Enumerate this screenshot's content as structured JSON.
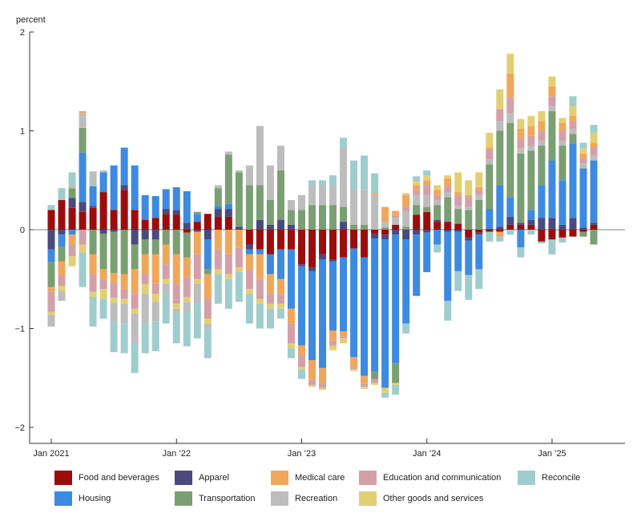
{
  "chart_data": {
    "type": "bar",
    "stacked": true,
    "ylabel": "percent",
    "ylim": [
      -2,
      2
    ],
    "yticks": [
      2,
      1,
      0,
      -1,
      -2
    ],
    "ytick_labels": [
      "2",
      "1",
      "0",
      "−1",
      "−2"
    ],
    "xtick_labels": [
      {
        "index": 0,
        "label": "Jan 2021"
      },
      {
        "index": 12,
        "label": "Jan ’22"
      },
      {
        "index": 24,
        "label": "Jan ’23"
      },
      {
        "index": 36,
        "label": "Jan ’24"
      },
      {
        "index": 48,
        "label": "Jan ’25"
      }
    ],
    "legend_placement": "bottom",
    "series": [
      {
        "key": "food",
        "name": "Food and beverages",
        "color": "#9b0d0d"
      },
      {
        "key": "apparel",
        "name": "Apparel",
        "color": "#4a4a7e"
      },
      {
        "key": "medical",
        "name": "Medical care",
        "color": "#f0a75a"
      },
      {
        "key": "education",
        "name": "Education and communication",
        "color": "#d3a0aa"
      },
      {
        "key": "reconcile",
        "name": "Reconcile",
        "color": "#9fcdcd"
      },
      {
        "key": "housing",
        "name": "Housing",
        "color": "#3d8ae0"
      },
      {
        "key": "transport",
        "name": "Transportation",
        "color": "#7a9f72"
      },
      {
        "key": "recreation",
        "name": "Recreation",
        "color": "#bdbdbd"
      },
      {
        "key": "other",
        "name": "Other goods and services",
        "color": "#e3cf73"
      }
    ],
    "months": [
      {
        "food": 0.2,
        "apparel": -0.2,
        "medical": -0.05,
        "education": -0.2,
        "reconcile": 0.05,
        "housing": -0.13,
        "transport": -0.25,
        "recreation": -0.12,
        "other": -0.03
      },
      {
        "food": 0.3,
        "apparel": -0.05,
        "medical": -0.15,
        "education": -0.1,
        "reconcile": 0.12,
        "housing": -0.12,
        "transport": -0.15,
        "recreation": -0.1,
        "other": -0.05
      },
      {
        "food": 0.22,
        "apparel": 0.1,
        "medical": -0.1,
        "education": -0.12,
        "reconcile": 0.13,
        "housing": -0.05,
        "transport": 0.1,
        "recreation": 0.03,
        "other": -0.1
      },
      {
        "food": 0.18,
        "apparel": 0.1,
        "medical": 0.02,
        "education": -0.15,
        "reconcile": -0.35,
        "housing": 0.5,
        "transport": 0.25,
        "recreation": 0.15,
        "other": -0.08
      },
      {
        "food": 0.22,
        "apparel": 0.02,
        "medical": -0.2,
        "education": -0.18,
        "reconcile": -0.3,
        "housing": 0.2,
        "transport": -0.25,
        "recreation": 0.15,
        "other": -0.05
      },
      {
        "food": 0.38,
        "apparel": -0.04,
        "medical": -0.1,
        "education": -0.1,
        "reconcile": -0.2,
        "housing": 0.2,
        "transport": -0.36,
        "recreation": 0.02,
        "other": -0.1
      },
      {
        "food": 0.2,
        "apparel": -0.02,
        "medical": -0.1,
        "education": -0.15,
        "reconcile": -0.3,
        "housing": 0.45,
        "transport": -0.42,
        "recreation": -0.2,
        "other": -0.05
      },
      {
        "food": 0.4,
        "apparel": 0.05,
        "medical": -0.15,
        "education": -0.1,
        "reconcile": -0.3,
        "housing": 0.38,
        "transport": -0.45,
        "recreation": -0.2,
        "other": -0.05
      },
      {
        "food": 0.2,
        "apparel": -0.15,
        "medical": -0.25,
        "education": -0.15,
        "reconcile": -0.3,
        "housing": 0.45,
        "transport": -0.25,
        "recreation": -0.3,
        "other": -0.05
      },
      {
        "food": 0.1,
        "apparel": -0.1,
        "medical": -0.2,
        "education": -0.1,
        "reconcile": -0.3,
        "housing": 0.25,
        "transport": -0.15,
        "recreation": -0.3,
        "other": -0.1
      },
      {
        "food": 0.12,
        "apparel": -0.1,
        "medical": -0.3,
        "education": -0.1,
        "reconcile": -0.3,
        "housing": 0.22,
        "transport": -0.15,
        "recreation": -0.2,
        "other": -0.08
      },
      {
        "food": 0.16,
        "apparel": 0.05,
        "medical": -0.2,
        "education": -0.15,
        "reconcile": -0.3,
        "housing": 0.2,
        "transport": -0.15,
        "recreation": -0.1,
        "other": -0.05
      },
      {
        "food": 0.15,
        "apparel": 0.05,
        "medical": -0.3,
        "education": -0.2,
        "reconcile": -0.3,
        "housing": 0.23,
        "transport": -0.25,
        "recreation": -0.05,
        "other": -0.05
      },
      {
        "food": -0.03,
        "apparel": 0.07,
        "medical": -0.2,
        "education": -0.2,
        "reconcile": -0.35,
        "housing": 0.32,
        "transport": -0.25,
        "recreation": -0.1,
        "other": -0.05
      },
      {
        "food": 0.08,
        "apparel": -0.02,
        "medical": -0.23,
        "education": -0.25,
        "reconcile": -0.35,
        "housing": 0.08,
        "transport": 0.02,
        "recreation": -0.2,
        "other": -0.05
      },
      {
        "food": 0.16,
        "apparel": -0.1,
        "medical": -0.25,
        "education": -0.2,
        "reconcile": -0.3,
        "housing": -0.3,
        "transport": -0.05,
        "recreation": -0.05,
        "other": -0.05
      },
      {
        "food": 0.13,
        "apparel": 0.08,
        "medical": -0.2,
        "education": -0.2,
        "reconcile": -0.3,
        "housing": 0.03,
        "transport": 0.18,
        "recreation": 0.03,
        "other": -0.05
      },
      {
        "food": 0.13,
        "apparel": 0.08,
        "medical": -0.25,
        "education": -0.2,
        "reconcile": -0.3,
        "housing": 0.05,
        "transport": 0.5,
        "recreation": 0.03,
        "other": -0.05
      },
      {
        "food": 0.0,
        "apparel": 0.03,
        "medical": -0.18,
        "education": -0.2,
        "reconcile": -0.3,
        "housing": 0.0,
        "transport": 0.55,
        "recreation": 0.02,
        "other": -0.05
      },
      {
        "food": -0.15,
        "apparel": -0.05,
        "medical": -0.15,
        "education": -0.2,
        "reconcile": -0.3,
        "housing": -0.05,
        "transport": 0.45,
        "recreation": 0.2,
        "other": -0.05
      },
      {
        "food": -0.2,
        "apparel": 0.1,
        "medical": -0.25,
        "education": -0.2,
        "reconcile": -0.25,
        "housing": -0.05,
        "transport": 0.35,
        "recreation": 0.6,
        "other": -0.05
      },
      {
        "food": -0.25,
        "apparel": 0.05,
        "medical": -0.2,
        "education": -0.1,
        "reconcile": -0.2,
        "housing": -0.2,
        "transport": 0.25,
        "recreation": 0.35,
        "other": -0.05
      },
      {
        "food": -0.2,
        "apparel": 0.1,
        "medical": -0.15,
        "education": -0.1,
        "reconcile": -0.1,
        "housing": -0.3,
        "transport": 0.5,
        "recreation": 0.25,
        "other": -0.05
      },
      {
        "food": -0.2,
        "apparel": 0.05,
        "medical": -0.15,
        "education": -0.2,
        "reconcile": -0.1,
        "housing": -0.6,
        "transport": 0.15,
        "recreation": 0.1,
        "other": -0.05
      },
      {
        "food": -0.35,
        "apparel": -0.02,
        "medical": -0.1,
        "education": -0.12,
        "reconcile": -0.1,
        "housing": -0.8,
        "transport": 0.2,
        "recreation": 0.15,
        "other": -0.02
      },
      {
        "food": -0.38,
        "apparel": -0.04,
        "medical": -0.2,
        "education": -0.05,
        "reconcile": 0.05,
        "housing": -0.9,
        "transport": 0.25,
        "recreation": 0.2,
        "other": -0.02
      },
      {
        "food": -0.25,
        "apparel": -0.05,
        "medical": -0.15,
        "education": -0.05,
        "reconcile": 0.05,
        "housing": -1.1,
        "transport": 0.25,
        "recreation": 0.2,
        "other": -0.02
      },
      {
        "food": -0.3,
        "apparel": -0.02,
        "medical": -0.1,
        "education": -0.05,
        "reconcile": 0.1,
        "housing": -0.7,
        "transport": 0.25,
        "recreation": 0.2,
        "other": -0.05
      },
      {
        "food": -0.28,
        "apparel": 0.08,
        "medical": -0.05,
        "education": -0.02,
        "reconcile": 0.1,
        "housing": -0.75,
        "transport": 0.15,
        "recreation": 0.6,
        "other": -0.05
      },
      {
        "food": -0.19,
        "apparel": 0.0,
        "medical": -0.1,
        "education": -0.02,
        "reconcile": 0.3,
        "housing": -1.1,
        "transport": 0.05,
        "recreation": 0.35,
        "other": -0.02
      },
      {
        "food": -0.28,
        "apparel": 0.0,
        "medical": -0.08,
        "education": -0.03,
        "reconcile": 0.35,
        "housing": -1.2,
        "transport": 0.05,
        "recreation": 0.35,
        "other": -0.02
      },
      {
        "food": -0.04,
        "apparel": -0.05,
        "medical": 0.02,
        "education": -0.04,
        "reconcile": 0.2,
        "housing": -1.35,
        "transport": -0.07,
        "recreation": 0.35,
        "other": -0.02
      },
      {
        "food": -0.05,
        "apparel": -0.05,
        "medical": 0.15,
        "education": 0.01,
        "reconcile": -0.05,
        "housing": -1.5,
        "transport": 0.02,
        "recreation": 0.05,
        "other": -0.05
      },
      {
        "food": 0.05,
        "apparel": -0.05,
        "medical": 0.05,
        "education": 0.02,
        "reconcile": -0.1,
        "housing": -1.3,
        "transport": -0.2,
        "recreation": 0.07,
        "other": -0.02
      },
      {
        "food": 0.0,
        "apparel": -0.1,
        "medical": 0.12,
        "education": 0.05,
        "reconcile": -0.1,
        "housing": -0.85,
        "transport": 0.03,
        "recreation": 0.15,
        "other": 0.02
      },
      {
        "food": 0.15,
        "apparel": -0.05,
        "medical": 0.05,
        "education": 0.05,
        "reconcile": 0.05,
        "housing": -0.62,
        "transport": 0.1,
        "recreation": 0.1,
        "other": 0.04
      },
      {
        "food": 0.18,
        "apparel": -0.03,
        "medical": 0.05,
        "education": 0.1,
        "reconcile": 0.05,
        "housing": -0.4,
        "transport": 0.05,
        "recreation": 0.12,
        "other": 0.05
      },
      {
        "food": 0.08,
        "apparel": 0.02,
        "medical": 0.05,
        "education": 0.05,
        "reconcile": -0.08,
        "housing": -0.15,
        "transport": 0.15,
        "recreation": 0.05,
        "other": 0.05
      },
      {
        "food": 0.08,
        "apparel": -0.02,
        "medical": 0.08,
        "education": 0.06,
        "reconcile": -0.2,
        "housing": -0.7,
        "transport": 0.25,
        "recreation": 0.05,
        "other": 0.03
      },
      {
        "food": 0.06,
        "apparel": -0.02,
        "medical": 0.04,
        "education": 0.1,
        "reconcile": -0.2,
        "housing": -0.4,
        "transport": 0.15,
        "recreation": 0.03,
        "other": 0.2
      },
      {
        "food": -0.08,
        "apparel": -0.03,
        "medical": 0.02,
        "education": 0.1,
        "reconcile": -0.25,
        "housing": -0.35,
        "transport": 0.2,
        "recreation": 0.03,
        "other": 0.15
      },
      {
        "food": -0.03,
        "apparel": -0.02,
        "medical": 0.03,
        "education": 0.05,
        "reconcile": -0.2,
        "housing": -0.35,
        "transport": 0.3,
        "recreation": 0.05,
        "other": 0.15
      },
      {
        "food": -0.02,
        "apparel": 0.01,
        "medical": 0.02,
        "education": 0.1,
        "reconcile": -0.1,
        "housing": 0.2,
        "transport": 0.45,
        "recreation": 0.05,
        "other": 0.15
      },
      {
        "food": -0.02,
        "apparel": 0.03,
        "medical": -0.05,
        "education": 0.12,
        "reconcile": -0.05,
        "housing": 0.42,
        "transport": 0.55,
        "recreation": 0.1,
        "other": 0.2
      },
      {
        "food": 0.05,
        "apparel": 0.08,
        "medical": 0.25,
        "education": 0.15,
        "reconcile": -0.05,
        "housing": 0.2,
        "transport": 0.75,
        "recreation": 0.1,
        "other": 0.2
      },
      {
        "food": 0.05,
        "apparel": 0.02,
        "medical": 0.1,
        "education": 0.1,
        "reconcile": -0.1,
        "housing": -0.18,
        "transport": 0.7,
        "recreation": 0.05,
        "other": 0.1
      },
      {
        "food": 0.05,
        "apparel": 0.05,
        "medical": 0.1,
        "education": 0.1,
        "reconcile": -0.05,
        "housing": 0.1,
        "transport": 0.6,
        "recreation": 0.05,
        "other": 0.1
      },
      {
        "food": -0.12,
        "apparel": 0.12,
        "medical": 0.1,
        "education": 0.1,
        "reconcile": -0.02,
        "housing": 0.33,
        "transport": 0.4,
        "recreation": 0.05,
        "other": 0.1
      },
      {
        "food": -0.1,
        "apparel": 0.12,
        "medical": 0.1,
        "education": 0.1,
        "reconcile": -0.15,
        "housing": 0.58,
        "transport": 0.5,
        "recreation": 0.05,
        "other": 0.1
      },
      {
        "food": -0.08,
        "apparel": 0.05,
        "medical": 0.08,
        "education": 0.1,
        "reconcile": -0.05,
        "housing": 0.45,
        "transport": 0.35,
        "recreation": 0.05,
        "other": 0.05
      },
      {
        "food": -0.07,
        "apparel": 0.12,
        "medical": 0.05,
        "education": 0.08,
        "reconcile": 0.1,
        "housing": 0.75,
        "transport": 0.1,
        "recreation": 0.05,
        "other": 0.1
      },
      {
        "food": -0.02,
        "apparel": 0.02,
        "medical": 0.05,
        "education": 0.05,
        "reconcile": 0.06,
        "housing": 0.6,
        "transport": -0.05,
        "recreation": 0.05,
        "other": 0.05
      },
      {
        "food": 0.05,
        "apparel": 0.02,
        "medical": 0.05,
        "education": 0.08,
        "reconcile": 0.08,
        "housing": 0.63,
        "transport": -0.15,
        "recreation": 0.05,
        "other": 0.1
      }
    ]
  },
  "legend": {
    "items": [
      {
        "label": "Food and beverages",
        "color": "#9b0d0d"
      },
      {
        "label": "Apparel",
        "color": "#4a4a7e"
      },
      {
        "label": "Medical care",
        "color": "#f0a75a"
      },
      {
        "label": "Education and communication",
        "color": "#d3a0aa"
      },
      {
        "label": "Reconcile",
        "color": "#9fcdcd"
      },
      {
        "label": "Housing",
        "color": "#3d8ae0"
      },
      {
        "label": "Transportation",
        "color": "#7a9f72"
      },
      {
        "label": "Recreation",
        "color": "#bdbdbd"
      },
      {
        "label": "Other goods and services",
        "color": "#e3cf73"
      }
    ]
  }
}
